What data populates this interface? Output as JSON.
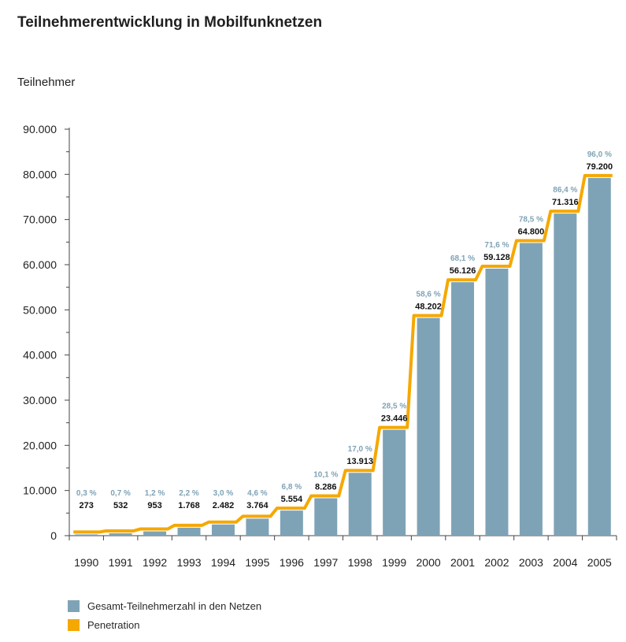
{
  "chart_data": {
    "type": "bar",
    "title": "Teilnehmerentwicklung in Mobilfunknetzen",
    "ylabel": "Teilnehmer",
    "xlabel": "",
    "ylim": [
      0,
      90000
    ],
    "yticks": [
      0,
      10000,
      20000,
      30000,
      40000,
      50000,
      60000,
      70000,
      80000,
      90000
    ],
    "ytick_labels": [
      "0",
      "10.000",
      "20.000",
      "30.000",
      "40.000",
      "50.000",
      "60.000",
      "70.000",
      "80.000",
      "90.000"
    ],
    "categories": [
      "1990",
      "1991",
      "1992",
      "1993",
      "1994",
      "1995",
      "1996",
      "1997",
      "1998",
      "1999",
      "2000",
      "2001",
      "2002",
      "2003",
      "2004",
      "2005"
    ],
    "series": [
      {
        "name": "Gesamt-Teilnehmerzahl in den Netzen",
        "type": "bar",
        "color": "#7fa3b6",
        "values": [
          273,
          532,
          953,
          1768,
          2482,
          3764,
          5554,
          8286,
          13913,
          23446,
          48202,
          56126,
          59128,
          64800,
          71316,
          79200
        ],
        "labels": [
          "273",
          "532",
          "953",
          "1.768",
          "2.482",
          "3.764",
          "5.554",
          "8.286",
          "13.913",
          "23.446",
          "48.202",
          "56.126",
          "59.128",
          "64.800",
          "71.316",
          "79.200"
        ]
      },
      {
        "name": "Penetration",
        "type": "step-line",
        "color": "#f5a800",
        "values": [
          0.3,
          0.7,
          1.2,
          2.2,
          3.0,
          4.6,
          6.8,
          10.1,
          17.0,
          28.5,
          58.6,
          68.1,
          71.6,
          78.5,
          86.4,
          96.0
        ],
        "labels": [
          "0,3 %",
          "0,7 %",
          "1,2 %",
          "2,2 %",
          "3,0 %",
          "4,6 %",
          "6,8 %",
          "10,1 %",
          "17,0 %",
          "28,5 %",
          "58,6 %",
          "68,1 %",
          "71,6 %",
          "78,5 %",
          "86,4 %",
          "96,0 %"
        ]
      }
    ],
    "legend": {
      "position": "bottom-left",
      "items": [
        {
          "label": "Gesamt-Teilnehmerzahl in den Netzen",
          "color": "#7fa3b6"
        },
        {
          "label": "Penetration",
          "color": "#f5a800"
        }
      ]
    },
    "penetration_label_color": "#7fa3b6",
    "grid": false
  }
}
